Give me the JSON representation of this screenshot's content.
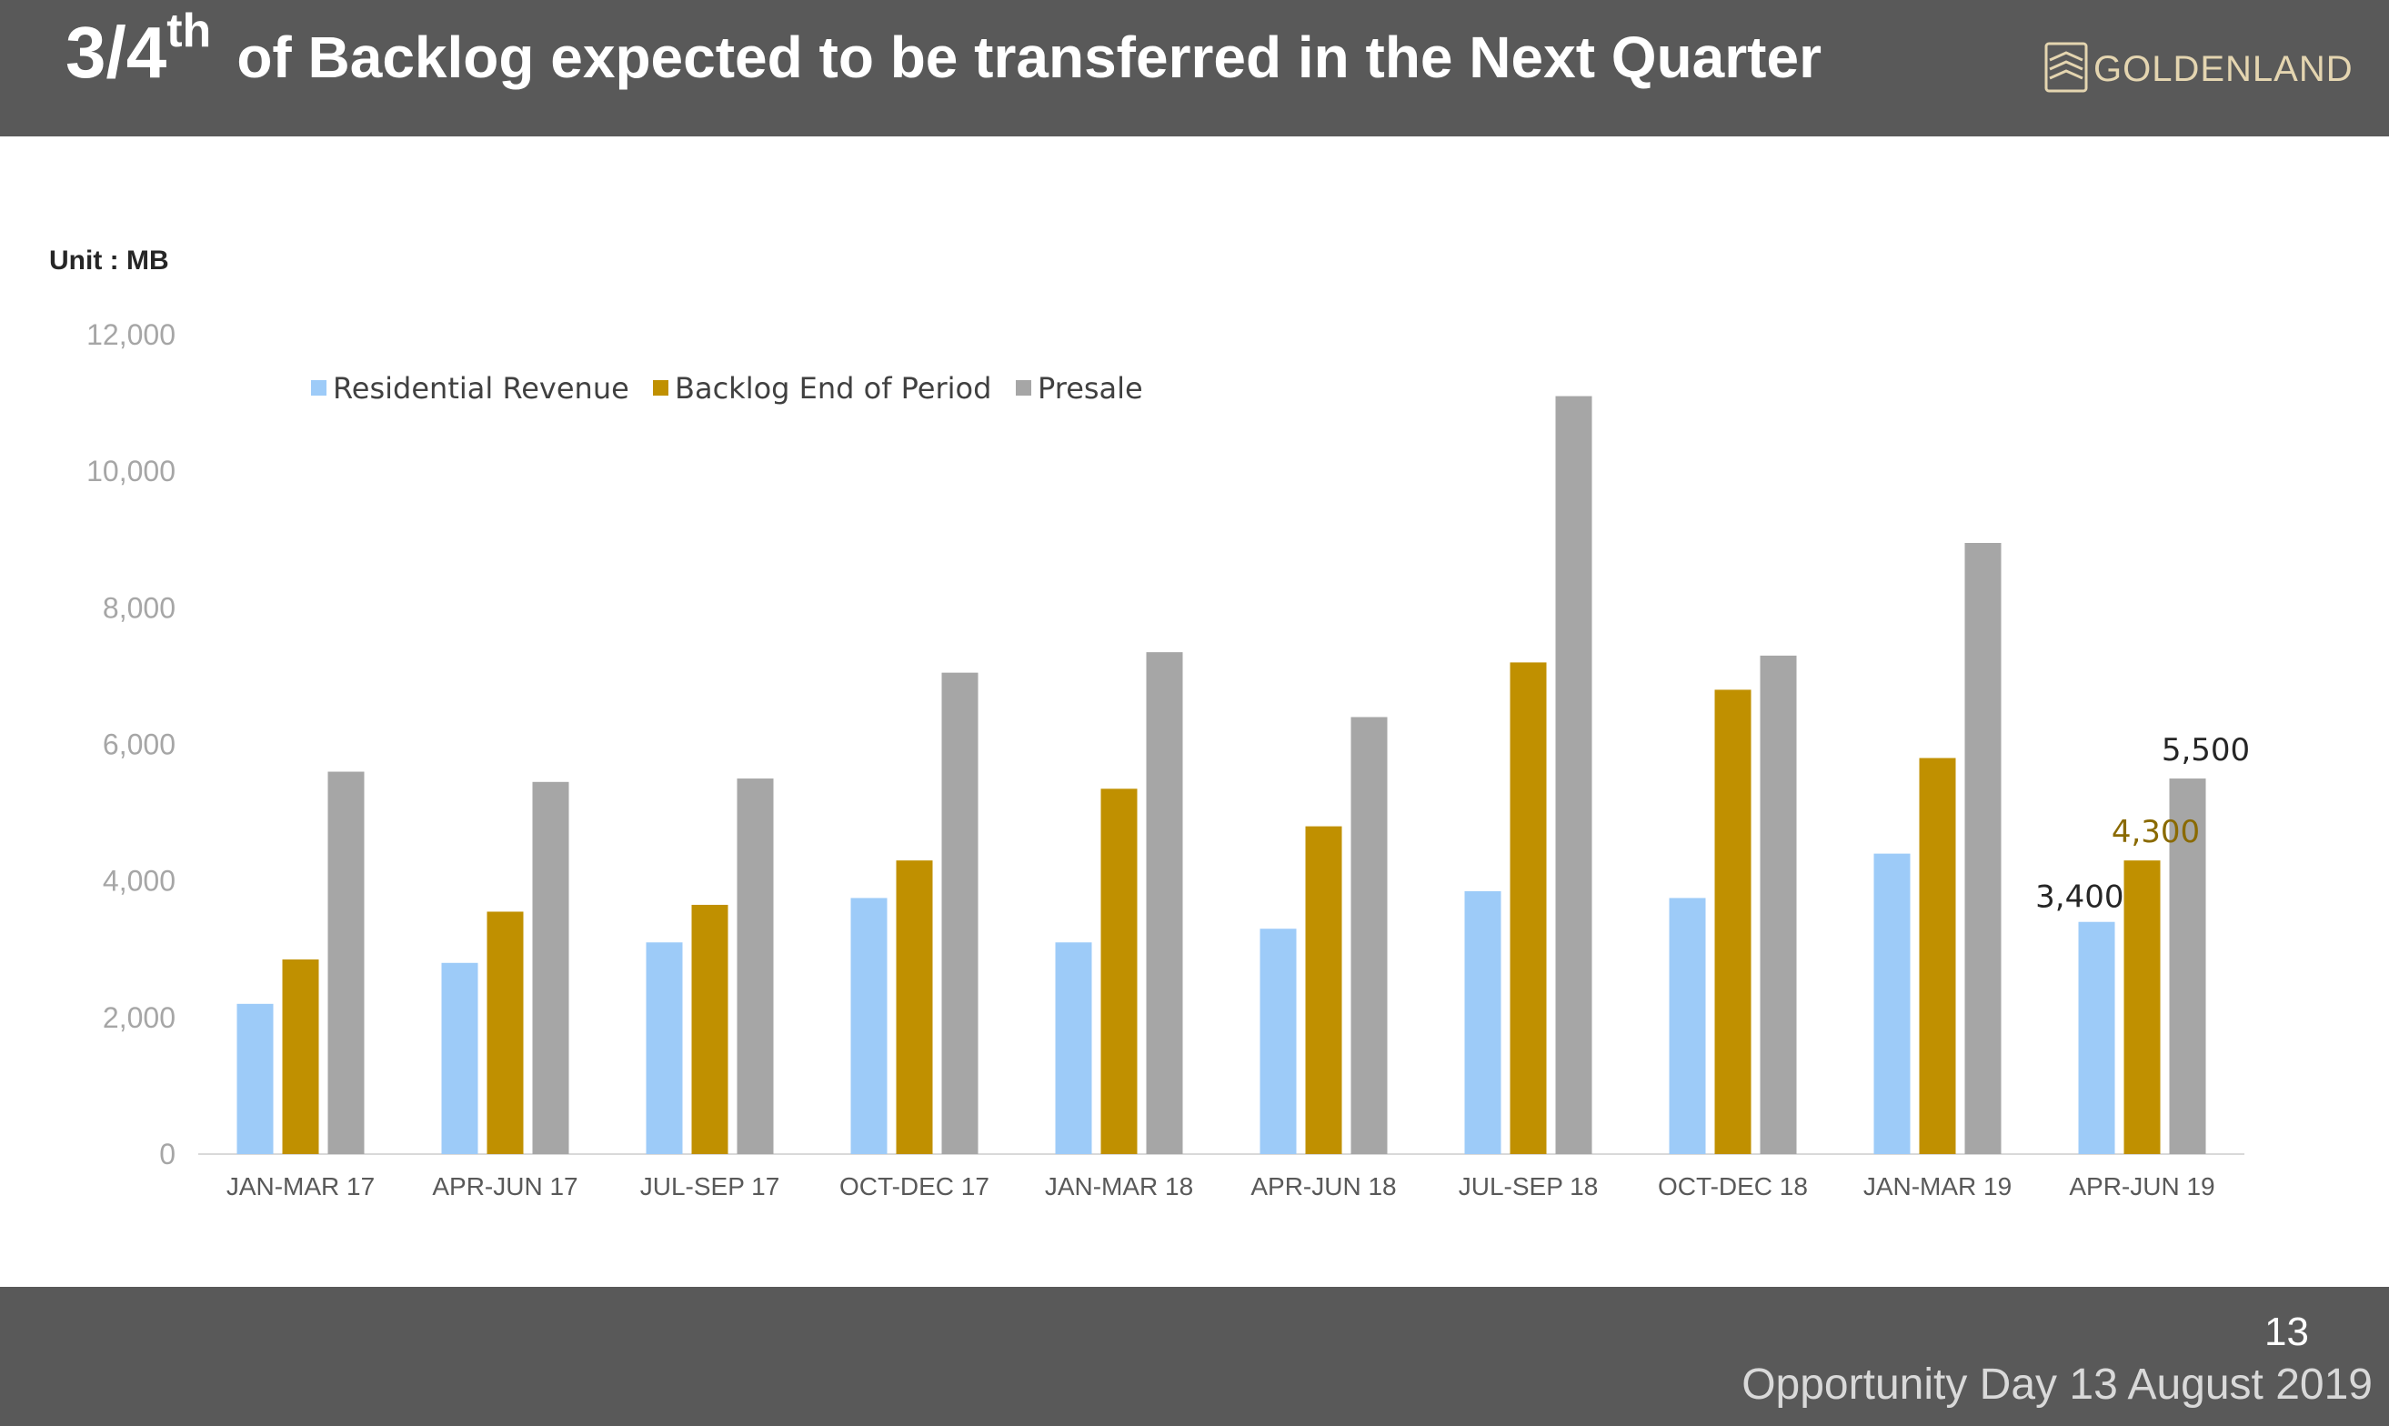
{
  "header": {
    "title_main": "3/4",
    "title_sup": "th",
    "title_rest": "of Backlog expected to be transferred in the Next Quarter",
    "logo_text": "GOLDENLAND"
  },
  "unit_label": "Unit : MB",
  "footer": {
    "page_number": "13",
    "text": "Opportunity Day 13 August 2019"
  },
  "colors": {
    "header_bg": "#595959",
    "residential": "#9dcbf8",
    "backlog": "#c09000",
    "presale": "#a6a6a6",
    "backlog_label": "#8a6a00"
  },
  "chart_data": {
    "type": "bar",
    "categories": [
      "JAN-MAR 17",
      "APR-JUN 17",
      "JUL-SEP 17",
      "OCT-DEC 17",
      "JAN-MAR 18",
      "APR-JUN 18",
      "JUL-SEP 18",
      "OCT-DEC 18",
      "JAN-MAR 19",
      "APR-JUN 19"
    ],
    "series": [
      {
        "name": "Residential Revenue",
        "values": [
          2200,
          2800,
          3100,
          3750,
          3100,
          3300,
          3850,
          3750,
          4400,
          3400
        ]
      },
      {
        "name": "Backlog End of Period",
        "values": [
          2850,
          3550,
          3650,
          4300,
          5350,
          4800,
          7200,
          6800,
          5800,
          4300
        ]
      },
      {
        "name": "Presale",
        "values": [
          5600,
          5450,
          5500,
          7050,
          7350,
          6400,
          11100,
          7300,
          8950,
          5500
        ]
      }
    ],
    "ylim": [
      0,
      12000
    ],
    "yticks": [
      0,
      2000,
      4000,
      6000,
      8000,
      10000,
      12000
    ],
    "ytick_labels": [
      "0",
      "2,000",
      "4,000",
      "6,000",
      "8,000",
      "10,000",
      "12,000"
    ],
    "data_labels": [
      {
        "category_index": 9,
        "series_index": 0,
        "text": "3,400"
      },
      {
        "category_index": 9,
        "series_index": 1,
        "text": "4,300"
      },
      {
        "category_index": 9,
        "series_index": 2,
        "text": "5,500"
      }
    ],
    "legend_position": "top-left",
    "grid": false
  }
}
